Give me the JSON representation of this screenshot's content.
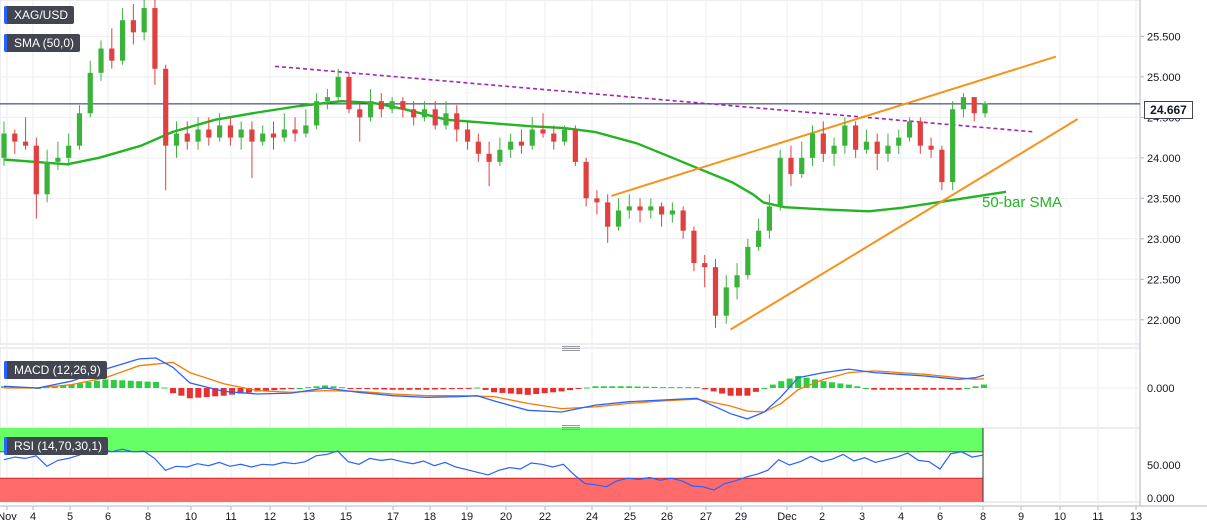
{
  "instrument": {
    "symbol": "XAG/USD",
    "last_price": "24.667"
  },
  "indicators": {
    "sma": {
      "label": "SMA (50,0)",
      "annotation": "50-bar SMA"
    },
    "macd": {
      "label": "MACD (12,26,9)"
    },
    "rsi": {
      "label": "RSI (14,70,30,1)"
    }
  },
  "colors": {
    "candle_up": "#3bb33b",
    "candle_down": "#e04040",
    "sma_line": "#22b522",
    "trendline": "#f7931a",
    "resistance": "#9c27b0",
    "macd_line": "#2962ff",
    "signal_line": "#f57c00",
    "hist_up": "#2ecc40",
    "hist_down": "#e8302f",
    "rsi_line": "#2962ff",
    "rsi_overbought_zone": "#66ff66",
    "rsi_oversold_zone": "#ff6b6b"
  },
  "chart_data": [
    {
      "type": "candlestick",
      "title": "XAG/USD",
      "ylim": [
        21.75,
        25.9
      ],
      "y_ticks": [
        "22.000",
        "22.500",
        "23.000",
        "23.500",
        "24.000",
        "24.500",
        "25.000",
        "25.500"
      ],
      "x_ticks": [
        "Nov",
        "4",
        "5",
        "6",
        "8",
        "10",
        "11",
        "12",
        "13",
        "15",
        "17",
        "18",
        "19",
        "20",
        "22",
        "24",
        "25",
        "26",
        "27",
        "29",
        "Dec",
        "2",
        "3",
        "4",
        "6",
        "8",
        "9",
        "10",
        "11",
        "13"
      ],
      "grid": true,
      "series": [
        {
          "name": "SMA (50,0)",
          "type": "line",
          "points": [
            [
              0,
              23.98
            ],
            [
              3,
              23.95
            ],
            [
              6,
              23.92
            ],
            [
              9,
              24.0
            ],
            [
              13,
              24.15
            ],
            [
              16,
              24.32
            ],
            [
              20,
              24.47
            ],
            [
              24,
              24.56
            ],
            [
              28,
              24.64
            ],
            [
              32,
              24.7
            ],
            [
              35,
              24.68
            ],
            [
              38,
              24.6
            ],
            [
              42,
              24.47
            ],
            [
              47,
              24.42
            ],
            [
              50,
              24.39
            ],
            [
              53,
              24.37
            ],
            [
              56,
              24.32
            ],
            [
              60,
              24.18
            ],
            [
              63,
              24.02
            ],
            [
              66,
              23.86
            ],
            [
              69,
              23.7
            ],
            [
              71,
              23.55
            ],
            [
              72,
              23.45
            ],
            [
              74,
              23.39
            ],
            [
              78,
              23.36
            ],
            [
              82,
              23.34
            ],
            [
              85,
              23.38
            ],
            [
              89,
              23.46
            ],
            [
              92,
              23.52
            ],
            [
              95,
              23.58
            ]
          ]
        },
        {
          "name": "Descending resistance",
          "type": "line",
          "points": [
            [
              25,
              25.13
            ],
            [
              95,
              24.32
            ]
          ]
        },
        {
          "name": "Wedge upper",
          "type": "line",
          "points": [
            [
              56,
              23.53
            ],
            [
              97,
              25.25
            ]
          ]
        },
        {
          "name": "Wedge lower",
          "type": "line",
          "points": [
            [
              67,
              21.88
            ],
            [
              99,
              24.48
            ]
          ]
        }
      ],
      "candles": [
        [
          24.0,
          24.3,
          24.45,
          23.9
        ],
        [
          24.3,
          24.2,
          24.35,
          24.05
        ],
        [
          24.2,
          24.15,
          24.5,
          24.1
        ],
        [
          24.15,
          23.55,
          24.25,
          23.25
        ],
        [
          23.55,
          23.95,
          24.1,
          23.45
        ],
        [
          23.95,
          24.0,
          24.2,
          23.85
        ],
        [
          24.0,
          24.15,
          24.3,
          23.9
        ],
        [
          24.15,
          24.55,
          24.65,
          24.1
        ],
        [
          24.55,
          25.05,
          25.2,
          24.5
        ],
        [
          25.05,
          25.35,
          25.45,
          24.95
        ],
        [
          25.35,
          25.2,
          25.6,
          25.1
        ],
        [
          25.2,
          25.7,
          25.85,
          25.15
        ],
        [
          25.7,
          25.55,
          25.9,
          25.4
        ],
        [
          25.55,
          25.85,
          25.95,
          25.45
        ],
        [
          25.85,
          25.1,
          25.95,
          24.9
        ],
        [
          25.1,
          24.15,
          25.15,
          23.6
        ],
        [
          24.15,
          24.3,
          24.45,
          24.0
        ],
        [
          24.3,
          24.2,
          24.45,
          24.1
        ],
        [
          24.2,
          24.35,
          24.5,
          24.1
        ],
        [
          24.35,
          24.25,
          24.5,
          24.15
        ],
        [
          24.25,
          24.4,
          24.55,
          24.2
        ],
        [
          24.4,
          24.25,
          24.5,
          24.15
        ],
        [
          24.25,
          24.35,
          24.45,
          24.1
        ],
        [
          24.35,
          24.2,
          24.45,
          23.75
        ],
        [
          24.2,
          24.3,
          24.4,
          24.15
        ],
        [
          24.3,
          24.25,
          24.45,
          24.1
        ],
        [
          24.25,
          24.35,
          24.55,
          24.2
        ],
        [
          24.35,
          24.3,
          24.5,
          24.2
        ],
        [
          24.3,
          24.4,
          24.6,
          24.25
        ],
        [
          24.4,
          24.7,
          24.8,
          24.35
        ],
        [
          24.7,
          24.75,
          24.85,
          24.6
        ],
        [
          24.75,
          25.0,
          25.1,
          24.7
        ],
        [
          25.0,
          24.6,
          25.05,
          24.55
        ],
        [
          24.6,
          24.5,
          24.7,
          24.2
        ],
        [
          24.5,
          24.7,
          24.85,
          24.45
        ],
        [
          24.7,
          24.6,
          24.8,
          24.5
        ],
        [
          24.6,
          24.7,
          24.75,
          24.55
        ],
        [
          24.7,
          24.6,
          24.75,
          24.5
        ],
        [
          24.6,
          24.5,
          24.7,
          24.4
        ],
        [
          24.5,
          24.6,
          24.7,
          24.45
        ],
        [
          24.6,
          24.4,
          24.7,
          24.35
        ],
        [
          24.4,
          24.55,
          24.7,
          24.35
        ],
        [
          24.55,
          24.35,
          24.65,
          24.2
        ],
        [
          24.35,
          24.2,
          24.45,
          24.1
        ],
        [
          24.2,
          24.05,
          24.3,
          23.95
        ],
        [
          24.05,
          23.95,
          24.2,
          23.65
        ],
        [
          23.95,
          24.1,
          24.25,
          23.9
        ],
        [
          24.1,
          24.2,
          24.3,
          24.0
        ],
        [
          24.2,
          24.15,
          24.35,
          24.05
        ],
        [
          24.15,
          24.35,
          24.5,
          24.1
        ],
        [
          24.35,
          24.3,
          24.55,
          24.25
        ],
        [
          24.3,
          24.2,
          24.4,
          24.1
        ],
        [
          24.2,
          24.35,
          24.4,
          24.15
        ],
        [
          24.35,
          23.95,
          24.4,
          23.9
        ],
        [
          23.95,
          23.5,
          24.0,
          23.4
        ],
        [
          23.5,
          23.45,
          23.6,
          23.3
        ],
        [
          23.45,
          23.15,
          23.55,
          22.95
        ],
        [
          23.15,
          23.35,
          23.5,
          23.1
        ],
        [
          23.35,
          23.4,
          23.55,
          23.25
        ],
        [
          23.4,
          23.35,
          23.5,
          23.2
        ],
        [
          23.35,
          23.4,
          23.5,
          23.25
        ],
        [
          23.4,
          23.3,
          23.45,
          23.15
        ],
        [
          23.3,
          23.35,
          23.45,
          23.2
        ],
        [
          23.35,
          23.1,
          23.4,
          23.0
        ],
        [
          23.1,
          22.7,
          23.15,
          22.6
        ],
        [
          22.7,
          22.65,
          22.8,
          22.4
        ],
        [
          22.65,
          22.05,
          22.75,
          21.9
        ],
        [
          22.05,
          22.4,
          22.55,
          21.95
        ],
        [
          22.4,
          22.55,
          22.7,
          22.25
        ],
        [
          22.55,
          22.9,
          23.0,
          22.5
        ],
        [
          22.9,
          23.1,
          23.25,
          22.85
        ],
        [
          23.1,
          23.4,
          23.55,
          23.0
        ],
        [
          23.4,
          24.0,
          24.1,
          23.35
        ],
        [
          24.0,
          23.8,
          24.15,
          23.65
        ],
        [
          23.8,
          24.0,
          24.2,
          23.75
        ],
        [
          24.0,
          24.3,
          24.4,
          23.9
        ],
        [
          24.3,
          24.05,
          24.45,
          23.95
        ],
        [
          24.05,
          24.15,
          24.25,
          23.9
        ],
        [
          24.15,
          24.4,
          24.5,
          24.05
        ],
        [
          24.4,
          24.1,
          24.45,
          24.0
        ],
        [
          24.1,
          24.2,
          24.35,
          24.05
        ],
        [
          24.2,
          24.05,
          24.3,
          23.85
        ],
        [
          24.05,
          24.15,
          24.3,
          23.95
        ],
        [
          24.15,
          24.25,
          24.35,
          24.05
        ],
        [
          24.25,
          24.45,
          24.5,
          24.2
        ],
        [
          24.45,
          24.15,
          24.5,
          24.05
        ],
        [
          24.15,
          24.1,
          24.25,
          24.0
        ],
        [
          24.1,
          23.7,
          24.15,
          23.6
        ],
        [
          23.7,
          24.6,
          24.7,
          23.6
        ],
        [
          24.6,
          24.75,
          24.8,
          24.5
        ],
        [
          24.75,
          24.55,
          24.75,
          24.45
        ],
        [
          24.55,
          24.67,
          24.7,
          24.5
        ]
      ]
    },
    {
      "type": "macd",
      "title": "MACD (12,26,9)",
      "ylim": [
        -0.42,
        0.42
      ],
      "y_ticks": [
        "0.000"
      ],
      "series": [
        {
          "name": "MACD",
          "type": "line",
          "points": [
            [
              0,
              0.02
            ],
            [
              4,
              0.0
            ],
            [
              8,
              0.08
            ],
            [
              12,
              0.22
            ],
            [
              16,
              0.34
            ],
            [
              18,
              0.35
            ],
            [
              20,
              0.24
            ],
            [
              22,
              0.06
            ],
            [
              26,
              -0.04
            ],
            [
              30,
              -0.07
            ],
            [
              34,
              -0.06
            ],
            [
              38,
              0.0
            ],
            [
              42,
              -0.05
            ],
            [
              46,
              -0.09
            ],
            [
              50,
              -0.11
            ],
            [
              54,
              -0.1
            ],
            [
              56,
              -0.09
            ],
            [
              58,
              -0.15
            ],
            [
              62,
              -0.26
            ],
            [
              66,
              -0.28
            ],
            [
              70,
              -0.2
            ],
            [
              74,
              -0.16
            ],
            [
              78,
              -0.14
            ],
            [
              82,
              -0.12
            ],
            [
              86,
              -0.3
            ],
            [
              88,
              -0.36
            ],
            [
              90,
              -0.28
            ],
            [
              92,
              -0.1
            ],
            [
              94,
              0.12
            ],
            [
              97,
              0.18
            ],
            [
              100,
              0.22
            ],
            [
              103,
              0.18
            ],
            [
              106,
              0.16
            ],
            [
              109,
              0.14
            ],
            [
              111,
              0.12
            ],
            [
              113,
              0.1
            ],
            [
              115,
              0.12
            ],
            [
              116,
              0.15
            ]
          ]
        },
        {
          "name": "Signal",
          "type": "line",
          "points": [
            [
              0,
              0.0
            ],
            [
              4,
              0.0
            ],
            [
              8,
              0.04
            ],
            [
              12,
              0.12
            ],
            [
              16,
              0.26
            ],
            [
              20,
              0.3
            ],
            [
              22,
              0.18
            ],
            [
              26,
              0.05
            ],
            [
              30,
              -0.03
            ],
            [
              34,
              -0.05
            ],
            [
              38,
              -0.03
            ],
            [
              42,
              -0.04
            ],
            [
              46,
              -0.07
            ],
            [
              50,
              -0.09
            ],
            [
              54,
              -0.09
            ],
            [
              58,
              -0.1
            ],
            [
              62,
              -0.18
            ],
            [
              66,
              -0.24
            ],
            [
              70,
              -0.22
            ],
            [
              74,
              -0.18
            ],
            [
              78,
              -0.15
            ],
            [
              82,
              -0.13
            ],
            [
              86,
              -0.21
            ],
            [
              88,
              -0.27
            ],
            [
              90,
              -0.28
            ],
            [
              92,
              -0.18
            ],
            [
              94,
              -0.02
            ],
            [
              97,
              0.1
            ],
            [
              100,
              0.18
            ],
            [
              103,
              0.2
            ],
            [
              106,
              0.18
            ],
            [
              109,
              0.16
            ],
            [
              111,
              0.14
            ],
            [
              113,
              0.12
            ],
            [
              115,
              0.1
            ],
            [
              116,
              0.11
            ]
          ]
        }
      ]
    },
    {
      "type": "rsi",
      "title": "RSI (14,70,30,1)",
      "ylim": [
        0,
        100
      ],
      "y_ticks": [
        "50.000",
        "0.000"
      ],
      "levels": [
        70,
        30
      ],
      "series": [
        {
          "name": "RSI",
          "type": "line",
          "values": [
            58,
            62,
            60,
            64,
            48,
            57,
            60,
            65,
            72,
            75,
            70,
            74,
            70,
            71,
            60,
            42,
            48,
            47,
            52,
            49,
            54,
            48,
            51,
            47,
            51,
            50,
            54,
            52,
            55,
            64,
            66,
            71,
            55,
            51,
            60,
            57,
            59,
            55,
            52,
            56,
            49,
            54,
            47,
            43,
            39,
            35,
            42,
            46,
            44,
            53,
            51,
            47,
            51,
            35,
            22,
            20,
            17,
            26,
            30,
            28,
            31,
            27,
            30,
            26,
            18,
            17,
            12,
            22,
            26,
            32,
            36,
            42,
            58,
            50,
            55,
            63,
            55,
            59,
            66,
            56,
            61,
            54,
            58,
            62,
            68,
            57,
            55,
            44,
            67,
            70,
            62,
            65
          ]
        }
      ]
    }
  ]
}
